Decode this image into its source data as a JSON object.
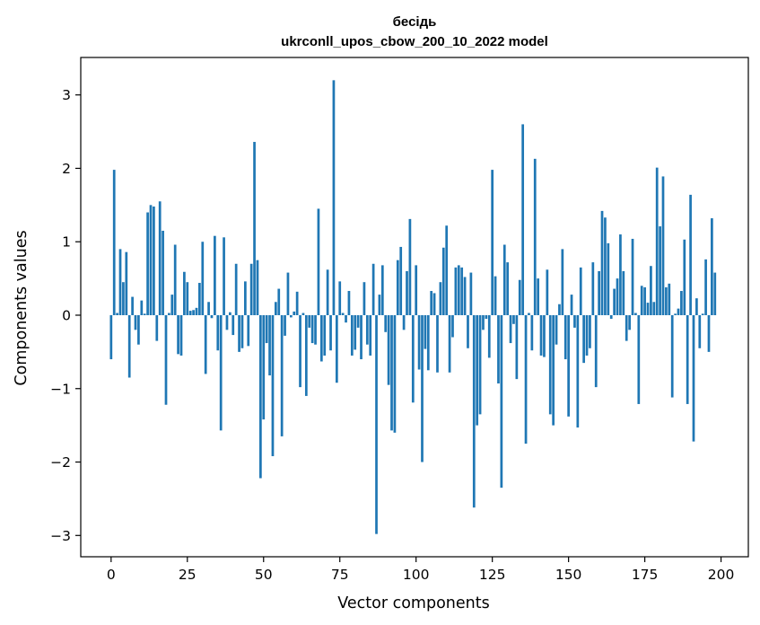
{
  "chart_data": {
    "type": "bar",
    "title_line1": "бесідь",
    "title_line2": "ukrconll_upos_cbow_200_10_2022 model",
    "xlabel": "Vector components",
    "ylabel": "Components values",
    "xlim": [
      -9.95,
      208.95
    ],
    "ylim": [
      -3.29,
      3.51
    ],
    "x_ticks": [
      0,
      25,
      50,
      75,
      100,
      125,
      150,
      175,
      200
    ],
    "y_ticks": [
      -3,
      -2,
      -1,
      0,
      1,
      2,
      3
    ],
    "y_tick_labels": [
      "−3",
      "−2",
      "−1",
      "0",
      "1",
      "2",
      "3"
    ],
    "bar_color": "#1f77b4",
    "grid": false,
    "legend": "none",
    "values": [
      -0.6,
      1.98,
      0.03,
      0.9,
      0.45,
      0.86,
      -0.85,
      0.25,
      -0.2,
      -0.4,
      0.2,
      0.02,
      1.4,
      1.5,
      1.48,
      -0.35,
      1.55,
      1.15,
      -1.22,
      0.03,
      0.28,
      0.96,
      -0.53,
      -0.55,
      0.59,
      0.45,
      0.06,
      0.07,
      0.1,
      0.44,
      1.0,
      -0.8,
      0.18,
      -0.04,
      1.08,
      -0.48,
      -1.57,
      1.06,
      -0.2,
      0.04,
      -0.27,
      0.7,
      -0.5,
      -0.45,
      0.46,
      -0.42,
      0.7,
      2.36,
      0.75,
      -2.22,
      -1.42,
      -0.38,
      -0.82,
      -1.92,
      0.18,
      0.36,
      -1.65,
      -0.28,
      0.58,
      -0.03,
      0.05,
      0.32,
      -0.98,
      0.03,
      -1.1,
      -0.17,
      -0.38,
      -0.4,
      1.45,
      -0.63,
      -0.55,
      0.62,
      -0.48,
      3.2,
      -0.92,
      0.46,
      0.03,
      -0.1,
      0.33,
      -0.55,
      -0.47,
      -0.17,
      -0.6,
      0.45,
      -0.4,
      -0.55,
      0.7,
      -2.98,
      0.28,
      0.68,
      -0.23,
      -0.95,
      -1.57,
      -1.6,
      0.75,
      0.93,
      -0.2,
      0.6,
      1.31,
      -1.19,
      0.68,
      -0.74,
      -2.0,
      -0.46,
      -0.75,
      0.33,
      0.3,
      -0.78,
      0.45,
      0.92,
      1.22,
      -0.78,
      -0.3,
      0.65,
      0.68,
      0.65,
      0.52,
      -0.45,
      0.58,
      -2.62,
      -1.5,
      -1.35,
      -0.2,
      -0.05,
      -0.58,
      1.98,
      0.53,
      -0.93,
      -2.35,
      0.96,
      0.72,
      -0.38,
      -0.12,
      -0.87,
      0.48,
      2.6,
      -1.75,
      0.03,
      -0.48,
      2.13,
      0.5,
      -0.55,
      -0.57,
      0.62,
      -1.35,
      -1.5,
      -0.4,
      0.15,
      0.9,
      -0.6,
      -1.38,
      0.28,
      -0.17,
      -1.53,
      0.65,
      -0.65,
      -0.55,
      -0.45,
      0.72,
      -0.98,
      0.6,
      1.42,
      1.33,
      0.98,
      -0.05,
      0.36,
      0.5,
      1.1,
      0.6,
      -0.35,
      -0.2,
      1.04,
      0.03,
      -1.21,
      0.4,
      0.38,
      0.17,
      0.67,
      0.18,
      2.01,
      1.21,
      1.89,
      0.38,
      0.43,
      -1.12,
      0.02,
      0.09,
      0.33,
      1.03,
      -1.21,
      1.64,
      -1.72,
      0.23,
      -0.45,
      0.02,
      0.76,
      -0.5,
      1.32,
      0.58
    ]
  }
}
